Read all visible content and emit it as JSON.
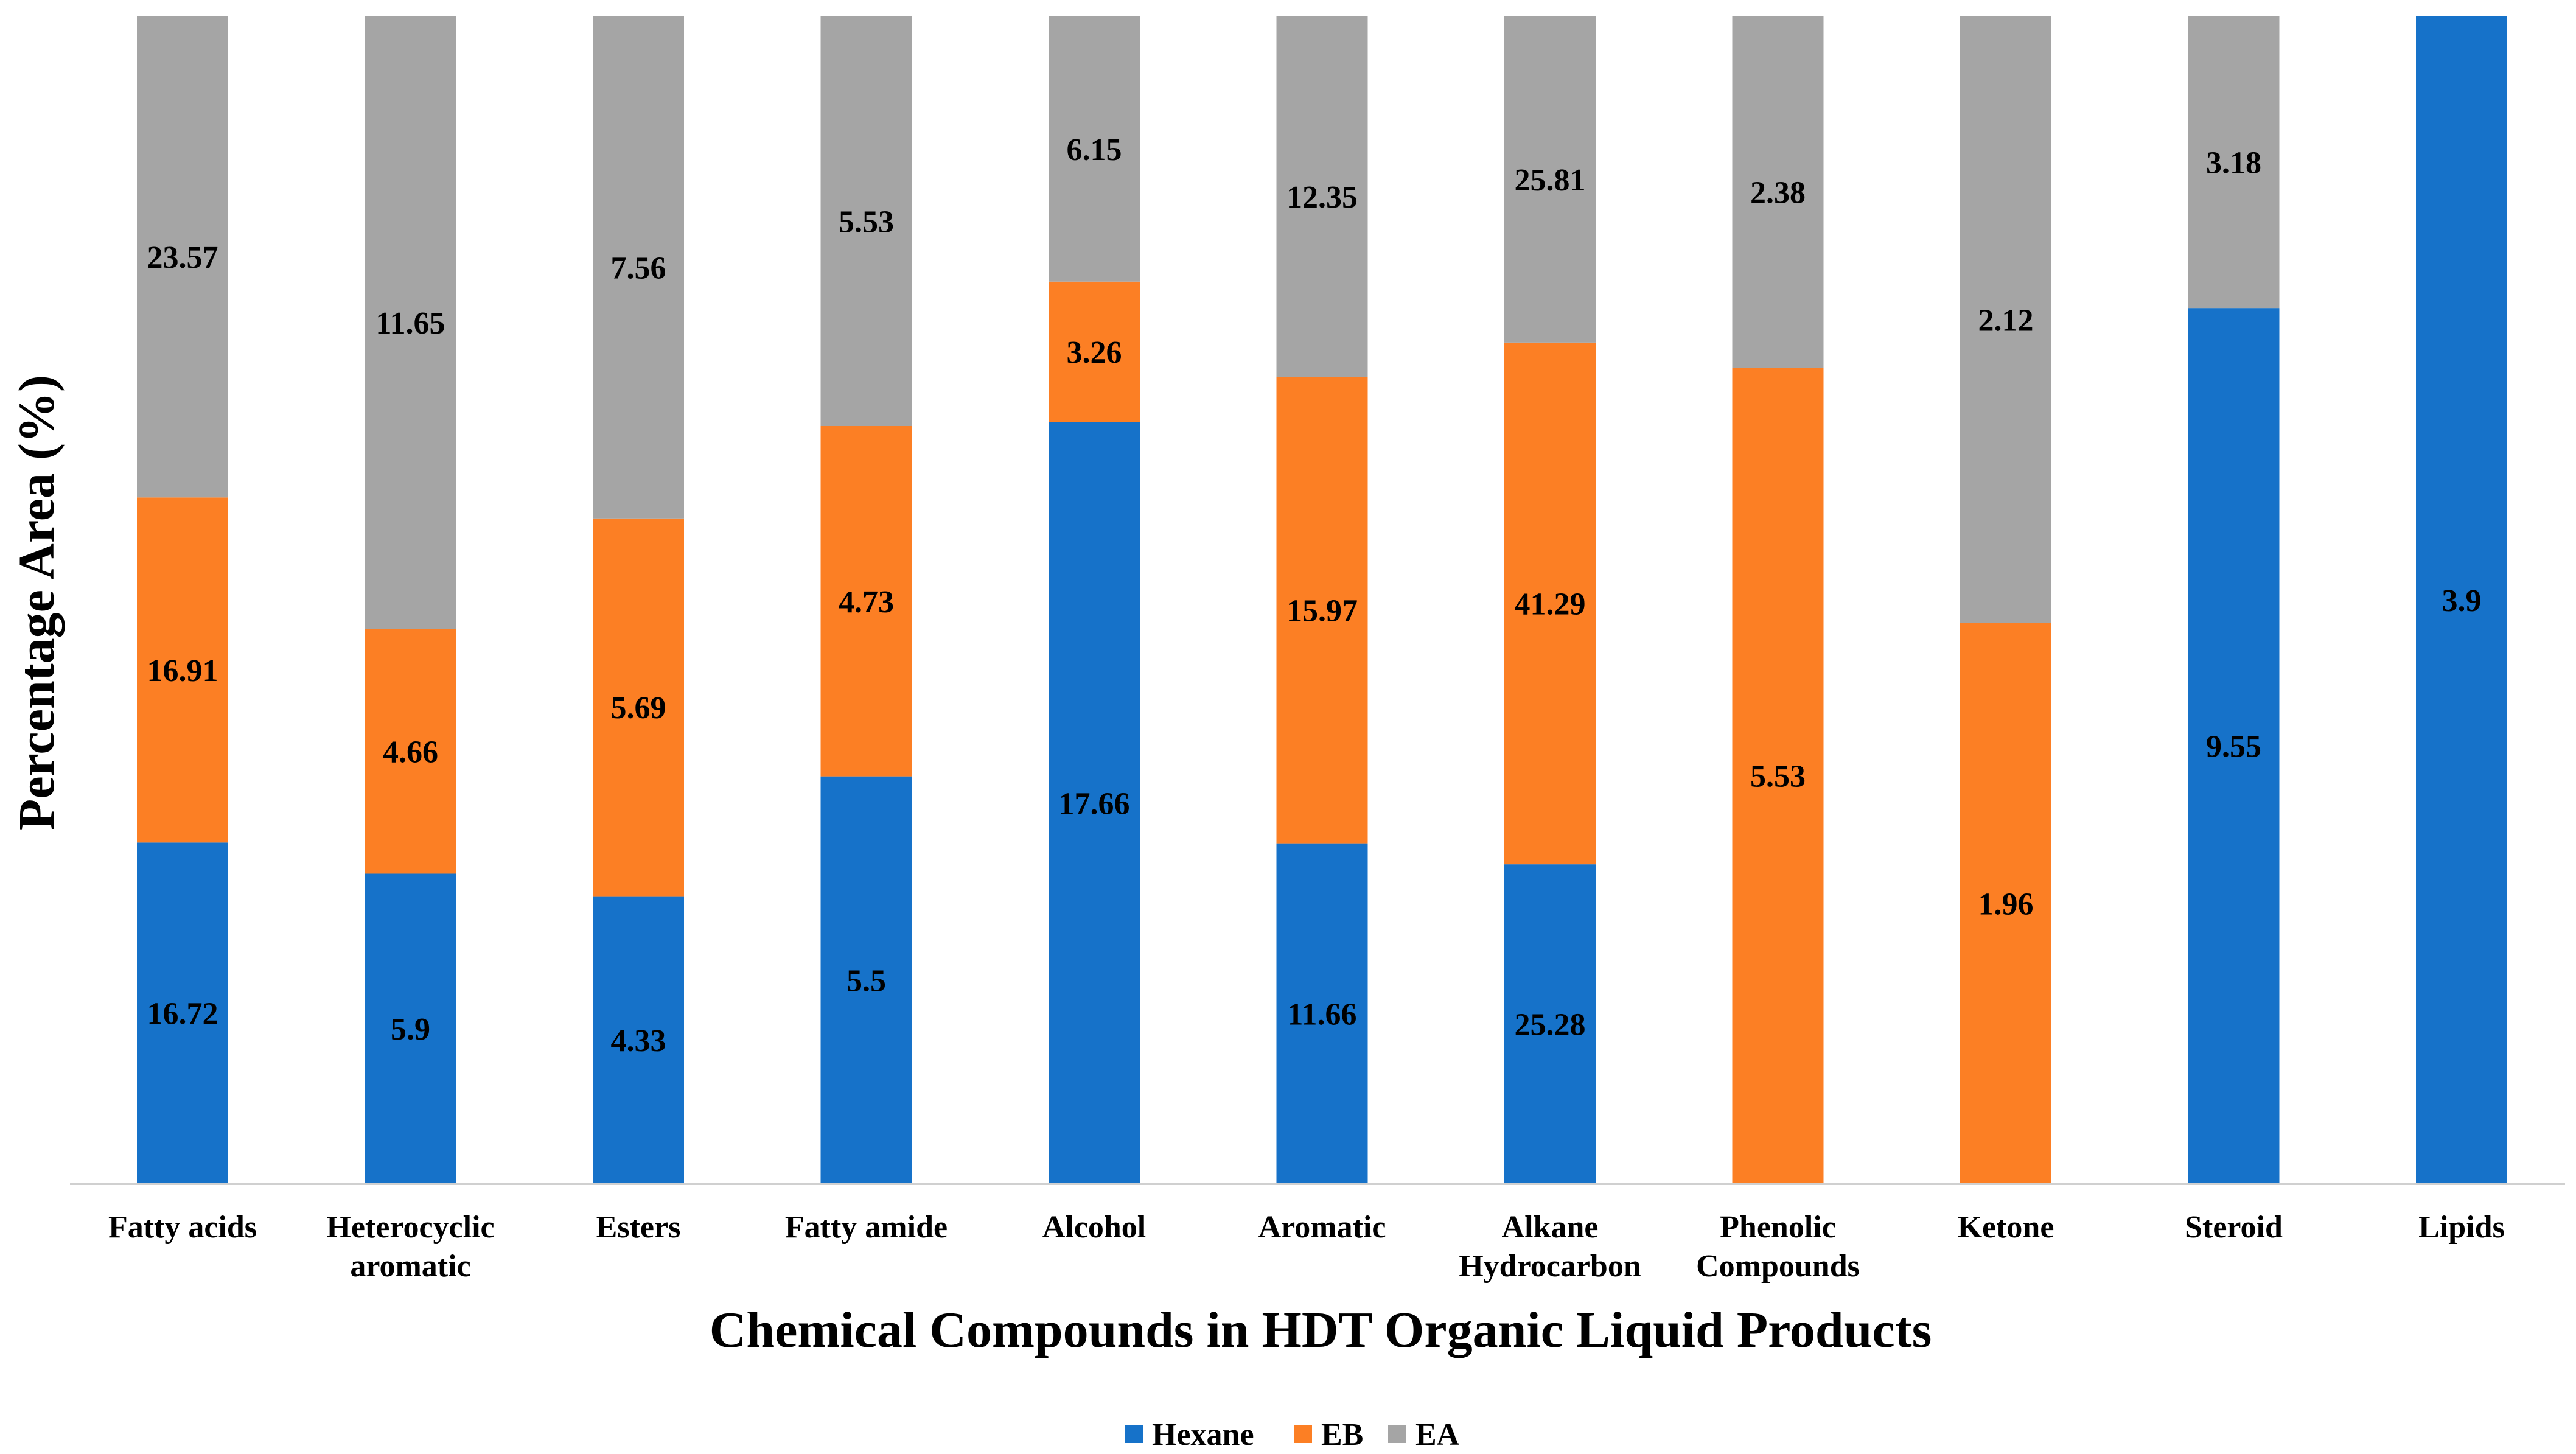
{
  "chart_data": {
    "type": "bar",
    "stacked": "percent",
    "title": "",
    "xlabel": "Chemical Compounds in HDT Organic Liquid Products",
    "ylabel": "Percentage Area (%)",
    "ylim": [
      0,
      100
    ],
    "grid": false,
    "legend_position": "bottom-center",
    "categories": [
      [
        "Fatty acids"
      ],
      [
        "Heterocyclic",
        "aromatic"
      ],
      [
        "Esters"
      ],
      [
        "Fatty amide"
      ],
      [
        "Alcohol"
      ],
      [
        "Aromatic"
      ],
      [
        "Alkane",
        "Hydrocarbon"
      ],
      [
        "Phenolic",
        "Compounds"
      ],
      [
        "Ketone"
      ],
      [
        "Steroid"
      ],
      [
        "Lipids"
      ]
    ],
    "series": [
      {
        "name": "Hexane",
        "color": "#1672C9",
        "values": [
          16.72,
          5.9,
          4.33,
          5.5,
          17.66,
          11.66,
          25.28,
          null,
          null,
          9.55,
          3.9
        ],
        "labels": [
          "16.72",
          "5.9",
          "4.33",
          "5.5",
          "17.66",
          "11.66",
          "25.28",
          null,
          null,
          "9.55",
          "3.9"
        ]
      },
      {
        "name": "EB",
        "color": "#FC7F24",
        "values": [
          16.91,
          4.66,
          5.69,
          4.73,
          3.26,
          15.97,
          41.29,
          5.53,
          1.96,
          null,
          null
        ],
        "labels": [
          "16.91",
          "4.66",
          "5.69",
          "4.73",
          "3.26",
          "15.97",
          "41.29",
          "5.53",
          "1.96",
          null,
          null
        ]
      },
      {
        "name": "EA",
        "color": "#A5A5A5",
        "values": [
          23.57,
          11.65,
          7.56,
          5.53,
          6.15,
          12.35,
          25.81,
          2.38,
          2.12,
          3.18,
          null
        ],
        "labels": [
          "23.57",
          "11.65",
          "7.56",
          "5.53",
          "6.15",
          "12.35",
          "25.81",
          "2.38",
          "2.12",
          "3.18",
          null
        ]
      }
    ]
  }
}
